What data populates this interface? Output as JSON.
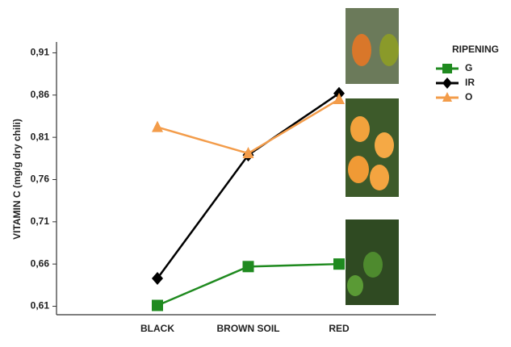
{
  "chart_data": {
    "type": "line",
    "y_label": "VITAMIN C (mg/g dry chili)",
    "legend_title": "RIPENING",
    "categories": [
      "BLACK",
      "BROWN SOIL",
      "RED"
    ],
    "series": [
      {
        "name": "G",
        "color": "#1f8a1f",
        "marker": "square",
        "values": [
          0.611,
          0.657,
          0.66
        ]
      },
      {
        "name": "IR",
        "color": "#000000",
        "marker": "diamond",
        "values": [
          0.643,
          0.789,
          0.862
        ]
      },
      {
        "name": "O",
        "color": "#f39c4a",
        "marker": "triangle",
        "values": [
          0.822,
          0.791,
          0.855
        ]
      }
    ],
    "ylim": [
      0.6,
      0.92
    ],
    "yticks": [
      {
        "value": 0.61,
        "label": "0,61"
      },
      {
        "value": 0.66,
        "label": "0,66"
      },
      {
        "value": 0.71,
        "label": "0,71"
      },
      {
        "value": 0.76,
        "label": "0,76"
      },
      {
        "value": 0.81,
        "label": "0,81"
      },
      {
        "value": 0.86,
        "label": "0,86"
      },
      {
        "value": 0.91,
        "label": "0,91"
      }
    ]
  }
}
